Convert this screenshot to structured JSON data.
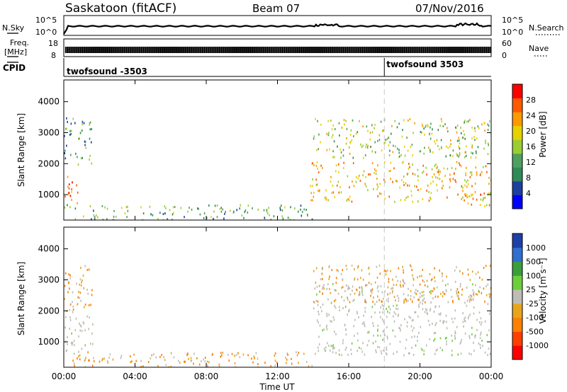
{
  "header": {
    "station": "Saskatoon (fitACF)",
    "beam": "Beam 07",
    "date": "07/Nov/2016"
  },
  "strip_panels": {
    "nsky_label": "N.Sky",
    "nsearch_label": "N.Search",
    "nsky_ticks": [
      "10^5",
      "10^0"
    ],
    "nsearch_ticks": [
      "10^5",
      "10^0"
    ],
    "freq_label_1": "Freq.",
    "freq_label_2": "[MHz]",
    "freq_ticks": [
      "18",
      "8"
    ],
    "nave_label": "Nave",
    "nave_ticks": [
      "60",
      "0"
    ],
    "cpid_label": "CPID",
    "cpid_entries": [
      {
        "text": "twofsound -3503",
        "start_hour": 0
      },
      {
        "text": "twofsound 3503",
        "start_hour": 18
      }
    ]
  },
  "colors": {
    "power_scale": [
      "#0000ff",
      "#1d3f9f",
      "#2e8b57",
      "#4f9f5f",
      "#9acd32",
      "#e6d200",
      "#ff9900",
      "#ff5a00",
      "#ff0000"
    ],
    "velocity_scale": [
      "#1f3fa8",
      "#2f6fd0",
      "#3a9f3a",
      "#6ccf3a",
      "#bdbdb6",
      "#e8a51c",
      "#ff7f00",
      "#ff3f00",
      "#ff0000"
    ],
    "grey_scatter": "#bcbcb5"
  },
  "chart_data": [
    {
      "type": "heatmap",
      "title": "",
      "xlabel": "",
      "ylabel": "Slant Range [km]",
      "xlim": [
        "00:00",
        "00:00"
      ],
      "ylim": [
        180,
        4700
      ],
      "x_ticks": [],
      "y_ticks": [
        "1000",
        "2000",
        "3000",
        "4000"
      ],
      "colorbar": {
        "label": "Power [dB]",
        "ticks": [
          "4",
          "8",
          "12",
          "16",
          "20",
          "24",
          "28"
        ],
        "range": [
          0,
          32
        ]
      },
      "regions": [
        {
          "name": "early-echo",
          "hours": [
            0.0,
            0.8
          ],
          "range_km": [
            700,
            1700
          ],
          "value_db": 26
        },
        {
          "name": "early-upper",
          "hours": [
            0.0,
            1.6
          ],
          "range_km": [
            2000,
            3500
          ],
          "value_db": 10
        },
        {
          "name": "near-range-band",
          "hours": [
            0.0,
            14.0
          ],
          "range_km": [
            200,
            700
          ],
          "value_db": 12
        },
        {
          "name": "main-band",
          "hours": [
            13.8,
            24.0
          ],
          "range_km": [
            800,
            2100
          ],
          "value_db": 22
        },
        {
          "name": "upper-band",
          "hours": [
            14.0,
            24.0
          ],
          "range_km": [
            2200,
            3500
          ],
          "value_db": 16
        },
        {
          "name": "late-band",
          "hours": [
            22.5,
            24.0
          ],
          "range_km": [
            650,
            1100
          ],
          "value_db": 24
        }
      ]
    },
    {
      "type": "heatmap",
      "title": "",
      "xlabel": "Time UT",
      "ylabel": "Slant Range [km]",
      "xlim": [
        "00:00",
        "00:00"
      ],
      "ylim": [
        180,
        4700
      ],
      "x_ticks": [
        "00:00",
        "04:00",
        "08:00",
        "12:00",
        "16:00",
        "20:00",
        "00:00"
      ],
      "y_ticks": [
        "1000",
        "2000",
        "3000",
        "4000"
      ],
      "colorbar": {
        "label": "Velocity [m s⁻¹]",
        "ticks": [
          "1000",
          "500",
          "100",
          "25",
          "-25",
          "-100",
          "-500",
          "-1000"
        ]
      },
      "regions": [
        {
          "name": "early-upper",
          "hours": [
            0.0,
            1.6
          ],
          "range_km": [
            2000,
            3500
          ],
          "value_ms": -150
        },
        {
          "name": "early-grey",
          "hours": [
            0.0,
            1.6
          ],
          "range_km": [
            700,
            2000
          ],
          "value_ms": 0
        },
        {
          "name": "near-range-band",
          "hours": [
            0.0,
            14.0
          ],
          "range_km": [
            200,
            700
          ],
          "value_ms": -60
        },
        {
          "name": "ground-scatter",
          "hours": [
            14.0,
            24.0
          ],
          "range_km": [
            600,
            2900
          ],
          "value_ms": 0
        },
        {
          "name": "upper-band",
          "hours": [
            14.0,
            24.0
          ],
          "range_km": [
            2300,
            3500
          ],
          "value_ms": -200
        }
      ]
    }
  ]
}
